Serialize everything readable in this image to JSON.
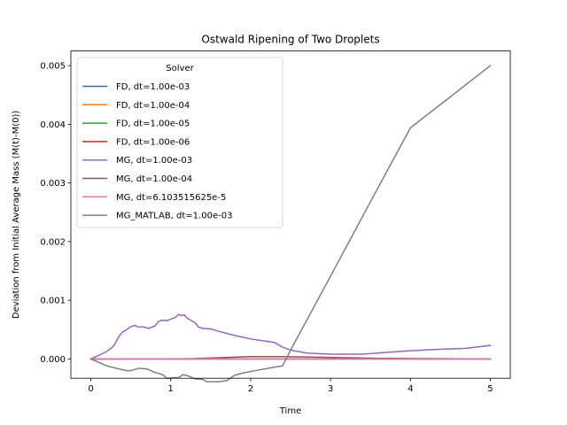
{
  "chart_data": {
    "type": "line",
    "title": "Ostwald Ripening of Two Droplets",
    "xlabel": "Time",
    "ylabel": "Deviation from Initial Average Mass (M(t)-M(0))",
    "xlim": [
      -0.25,
      5.25
    ],
    "ylim": [
      -0.00033,
      0.00525
    ],
    "xticks": [
      0,
      1,
      2,
      3,
      4,
      5
    ],
    "xtick_labels": [
      "0",
      "1",
      "2",
      "3",
      "4",
      "5"
    ],
    "yticks": [
      0.0,
      0.001,
      0.002,
      0.003,
      0.004,
      0.005
    ],
    "ytick_labels": [
      "0.000",
      "0.001",
      "0.002",
      "0.003",
      "0.004",
      "0.005"
    ],
    "grid": false,
    "legend": {
      "title": "Solver",
      "placement": "top-left"
    },
    "series": [
      {
        "name": "FD, dt=1.00e-03",
        "color": "#1f77b4",
        "points": [
          [
            0,
            0
          ],
          [
            1,
            0
          ],
          [
            2,
            0
          ],
          [
            3,
            0
          ],
          [
            4,
            0
          ],
          [
            5,
            0
          ]
        ]
      },
      {
        "name": "FD, dt=1.00e-04",
        "color": "#ff7f0e",
        "points": [
          [
            0,
            0
          ],
          [
            1,
            0
          ],
          [
            2,
            0
          ],
          [
            3,
            0
          ],
          [
            4,
            0
          ],
          [
            5,
            0
          ]
        ]
      },
      {
        "name": "FD, dt=1.00e-05",
        "color": "#2ca02c",
        "points": [
          [
            0,
            0
          ],
          [
            1,
            0
          ],
          [
            2,
            0
          ],
          [
            3,
            0
          ],
          [
            4,
            0
          ],
          [
            5,
            0
          ]
        ]
      },
      {
        "name": "FD, dt=1.00e-06",
        "color": "#d62728",
        "points": [
          [
            0,
            0
          ],
          [
            1,
            0
          ],
          [
            2,
            0
          ],
          [
            3,
            0
          ],
          [
            4,
            0
          ],
          [
            5,
            0
          ]
        ]
      },
      {
        "name": "MG, dt=1.00e-03",
        "color": "#9467bd",
        "points": [
          [
            0,
            0
          ],
          [
            0.1,
            6e-05
          ],
          [
            0.2,
            0.00013
          ],
          [
            0.27,
            0.0002
          ],
          [
            0.3,
            0.00025
          ],
          [
            0.35,
            0.00038
          ],
          [
            0.4,
            0.00046
          ],
          [
            0.45,
            0.0005
          ],
          [
            0.5,
            0.00055
          ],
          [
            0.55,
            0.00057
          ],
          [
            0.6,
            0.00054
          ],
          [
            0.65,
            0.00055
          ],
          [
            0.72,
            0.00052
          ],
          [
            0.8,
            0.00056
          ],
          [
            0.85,
            0.00064
          ],
          [
            0.9,
            0.00066
          ],
          [
            0.95,
            0.00065
          ],
          [
            1.0,
            0.00068
          ],
          [
            1.05,
            0.0007
          ],
          [
            1.1,
            0.00076
          ],
          [
            1.13,
            0.00074
          ],
          [
            1.17,
            0.00075
          ],
          [
            1.2,
            0.0007
          ],
          [
            1.25,
            0.00066
          ],
          [
            1.3,
            0.00062
          ],
          [
            1.35,
            0.00054
          ],
          [
            1.4,
            0.00052
          ],
          [
            1.5,
            0.00051
          ],
          [
            1.6,
            0.00047
          ],
          [
            1.8,
            0.0004
          ],
          [
            2.0,
            0.00034
          ],
          [
            2.2,
            0.0003
          ],
          [
            2.3,
            0.00028
          ],
          [
            2.4,
            0.0002
          ],
          [
            2.5,
            0.00015
          ],
          [
            2.7,
            0.0001
          ],
          [
            3.0,
            8e-05
          ],
          [
            3.4,
            8e-05
          ],
          [
            3.7,
            0.00011
          ],
          [
            4.0,
            0.00014
          ],
          [
            4.3,
            0.00016
          ],
          [
            4.7,
            0.00018
          ],
          [
            5.0,
            0.00023
          ]
        ]
      },
      {
        "name": "MG, dt=1.00e-04",
        "color": "#8c564b",
        "points": [
          [
            0,
            0
          ],
          [
            1.0,
            0
          ],
          [
            1.3,
            5e-06
          ],
          [
            1.6,
            2e-05
          ],
          [
            2.0,
            4e-05
          ],
          [
            2.4,
            4e-05
          ],
          [
            2.8,
            3e-05
          ],
          [
            3.2,
            2e-05
          ],
          [
            3.6,
            1e-05
          ],
          [
            4.2,
            5e-06
          ],
          [
            5.0,
            0
          ]
        ]
      },
      {
        "name": "MG, dt=6.103515625e-5",
        "color": "#e377c2",
        "points": [
          [
            0,
            0
          ],
          [
            1,
            0
          ],
          [
            2,
            0
          ],
          [
            3,
            0
          ],
          [
            4,
            0
          ],
          [
            5,
            0
          ]
        ]
      },
      {
        "name": "MG_MATLAB, dt=1.00e-03",
        "color": "#7f7f7f",
        "points": [
          [
            0,
            0
          ],
          [
            0.1,
            -6e-05
          ],
          [
            0.2,
            -0.00012
          ],
          [
            0.35,
            -0.00017
          ],
          [
            0.45,
            -0.0002
          ],
          [
            0.5,
            -0.0002
          ],
          [
            0.6,
            -0.00016
          ],
          [
            0.7,
            -0.00017
          ],
          [
            0.8,
            -0.00023
          ],
          [
            0.9,
            -0.00027
          ],
          [
            0.95,
            -0.00033
          ],
          [
            1.05,
            -0.00032
          ],
          [
            1.1,
            -0.00032
          ],
          [
            1.15,
            -0.00027
          ],
          [
            1.2,
            -0.00028
          ],
          [
            1.3,
            -0.00034
          ],
          [
            1.4,
            -0.00035
          ],
          [
            1.45,
            -0.00039
          ],
          [
            1.6,
            -0.00039
          ],
          [
            1.7,
            -0.00037
          ],
          [
            1.8,
            -0.00028
          ],
          [
            1.9,
            -0.00024
          ],
          [
            2.1,
            -0.00019
          ],
          [
            2.3,
            -0.00014
          ],
          [
            2.4,
            -0.00012
          ],
          [
            2.5,
            0.00015
          ],
          [
            3.0,
            0.00141
          ],
          [
            3.5,
            0.00268
          ],
          [
            4.0,
            0.00394
          ],
          [
            4.5,
            0.00447
          ],
          [
            5.0,
            0.005
          ]
        ]
      }
    ]
  }
}
